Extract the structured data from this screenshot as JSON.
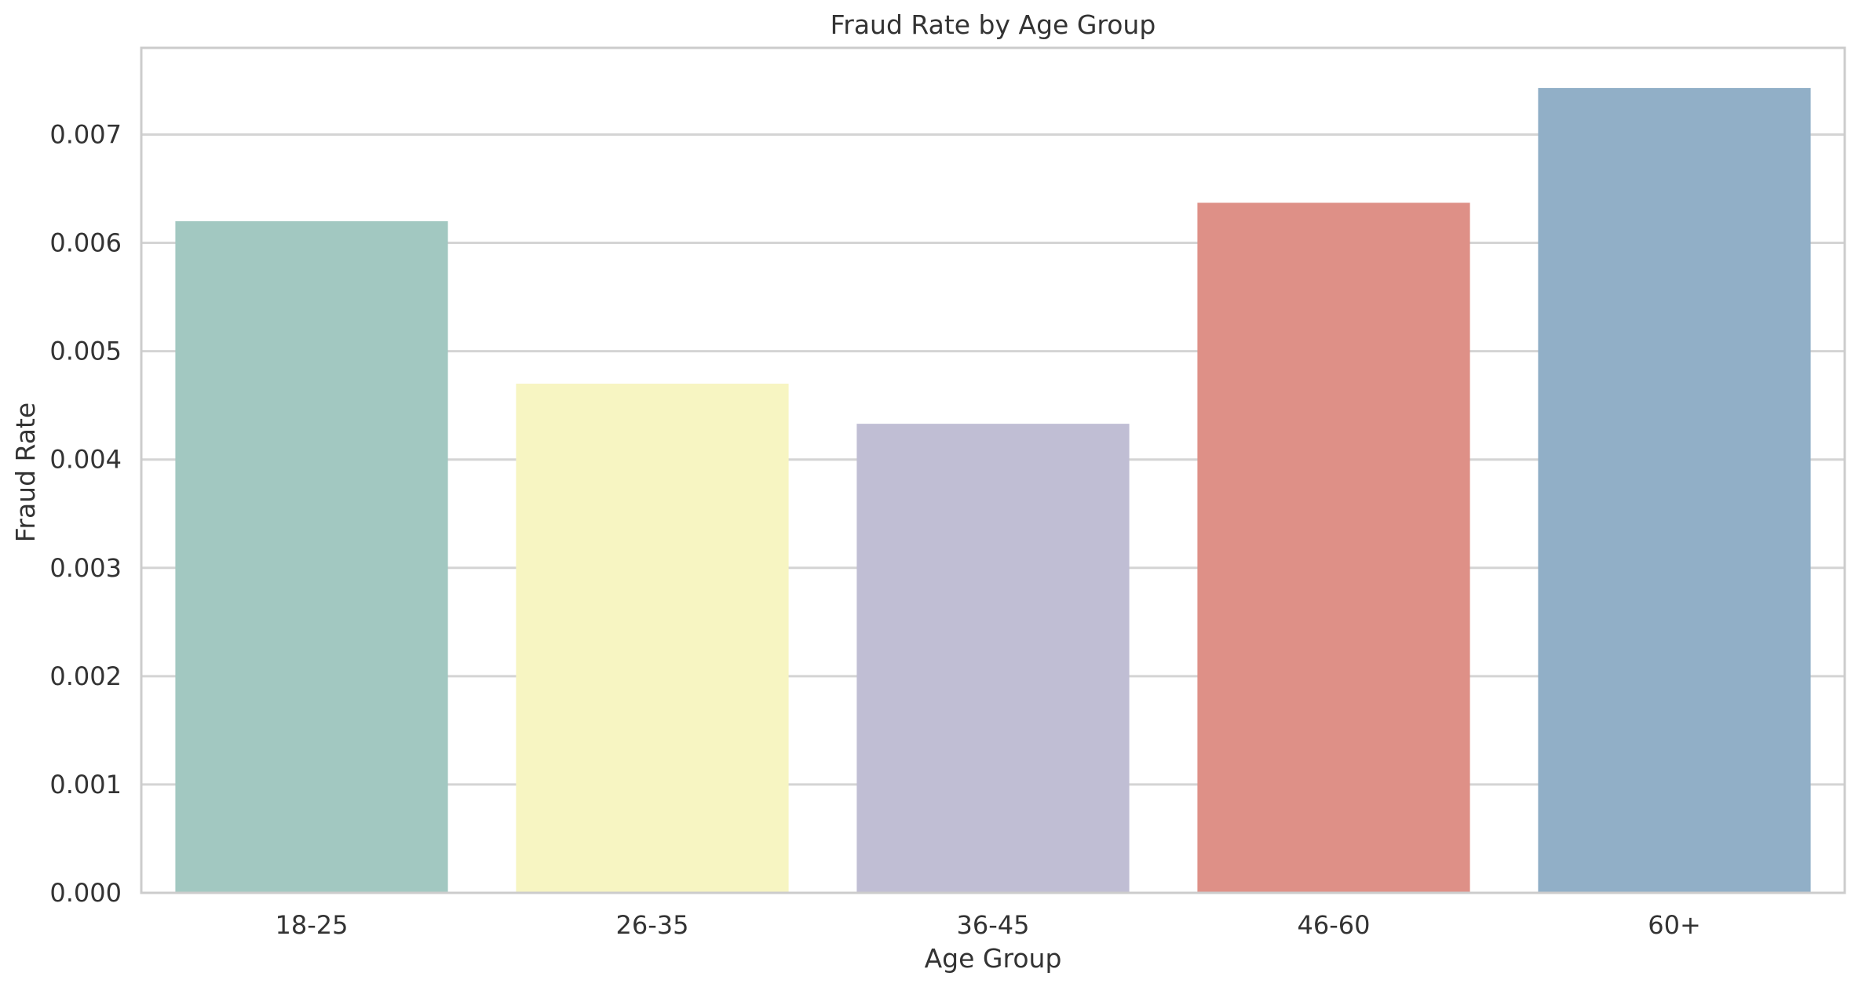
{
  "chart_data": {
    "type": "bar",
    "title": "Fraud Rate by Age Group",
    "xlabel": "Age Group",
    "ylabel": "Fraud Rate",
    "categories": [
      "18-25",
      "26-35",
      "36-45",
      "46-60",
      "60+"
    ],
    "values": [
      0.0062,
      0.0047,
      0.00433,
      0.00637,
      0.00743
    ],
    "colors": [
      "#a2c8c1",
      "#f7f5c2",
      "#c0bed4",
      "#de9087",
      "#91afc7"
    ],
    "yticks": [
      "0.000",
      "0.001",
      "0.002",
      "0.003",
      "0.004",
      "0.005",
      "0.006",
      "0.007"
    ],
    "ylim": [
      0,
      0.0078
    ],
    "grid": "horizontal",
    "legend": "none"
  }
}
